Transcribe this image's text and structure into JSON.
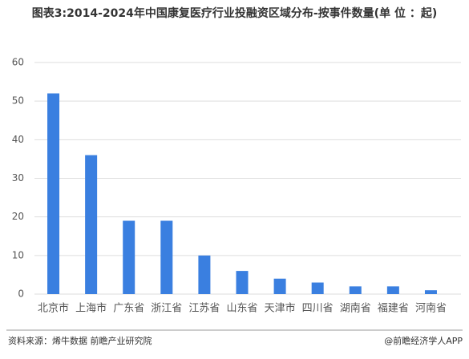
{
  "chart_data": {
    "type": "bar",
    "title": "图表3:2014-2024年中国康复医疗行业投融资区域分布-按事件数量(单 位 ：起)",
    "categories": [
      "北京市",
      "上海市",
      "广东省",
      "浙江省",
      "江苏省",
      "山东省",
      "天津市",
      "四川省",
      "湖南省",
      "福建省",
      "河南省"
    ],
    "values": [
      52,
      36,
      19,
      19,
      10,
      6,
      4,
      3,
      2,
      2,
      1
    ],
    "color": "#3a7fe0",
    "ylim": [
      0,
      60
    ],
    "yticks": [
      0,
      10,
      20,
      30,
      40,
      50,
      60
    ],
    "grid": true
  },
  "footer": {
    "source": "资料来源：烯牛数据 前瞻产业研究院",
    "brand": "@前瞻经济学人APP"
  }
}
